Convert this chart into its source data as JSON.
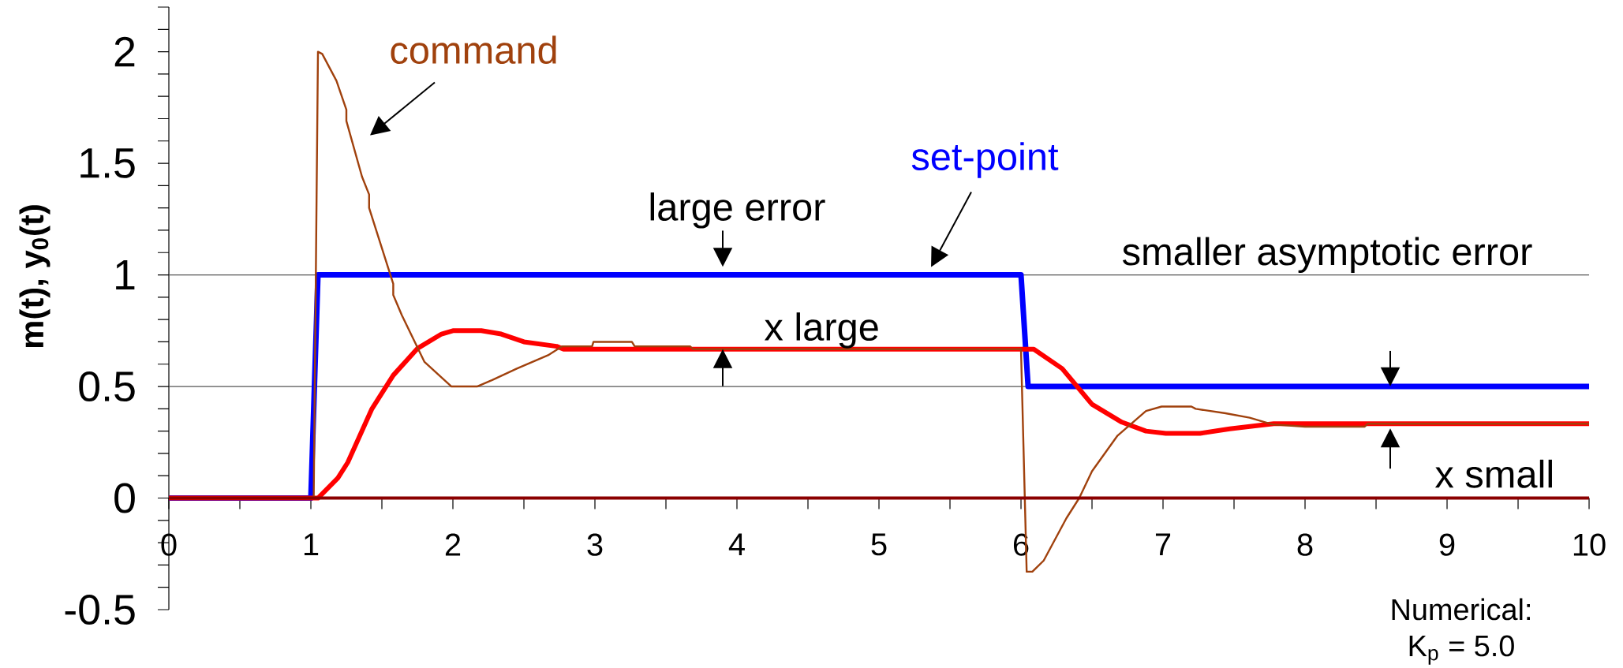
{
  "chart_data": {
    "type": "line",
    "ylabel": "m(t), y$_{0}$(t)",
    "xlim": [
      0,
      10
    ],
    "ylim": [
      -0.5,
      2.2
    ],
    "xticks": [
      0,
      1,
      2,
      3,
      4,
      5,
      6,
      7,
      8,
      9,
      10
    ],
    "yticks": [
      -0.5,
      0,
      0.5,
      1,
      1.5,
      2
    ],
    "series": [
      {
        "name": "set-point",
        "color": "#0000ff",
        "x": [
          0,
          1.0,
          1.05,
          6.0,
          6.05,
          10
        ],
        "values": [
          0,
          0,
          1,
          1,
          0.5,
          0.5
        ]
      },
      {
        "color": "#ff0000",
        "x": [
          0,
          1.05,
          1.19,
          1.26,
          1.43,
          1.58,
          1.75,
          1.92,
          2.0,
          2.2,
          2.34,
          2.5,
          2.73,
          2.78,
          3.0,
          6.0,
          6.09,
          6.29,
          6.5,
          6.71,
          6.88,
          7.02,
          7.26,
          7.47,
          7.67,
          7.78,
          10
        ],
        "values": [
          0,
          0,
          0.09,
          0.16,
          0.4,
          0.55,
          0.67,
          0.735,
          0.75,
          0.75,
          0.735,
          0.7,
          0.68,
          0.667,
          0.667,
          0.667,
          0.667,
          0.58,
          0.42,
          0.34,
          0.3,
          0.29,
          0.29,
          0.31,
          0.325,
          0.333,
          0.333
        ]
      },
      {
        "name": "command",
        "color": "#a0410d",
        "x": [
          0,
          1.02,
          1.05,
          1.08,
          1.18,
          1.25,
          1.25,
          1.36,
          1.41,
          1.41,
          1.58,
          1.58,
          1.64,
          1.8,
          1.92,
          1.99,
          2.17,
          2.28,
          2.45,
          2.67,
          2.77,
          2.98,
          2.99,
          3.26,
          3.28,
          3.67,
          3.69,
          6.0,
          6.04,
          6.08,
          6.16,
          6.32,
          6.41,
          6.5,
          6.68,
          6.88,
          6.99,
          7.06,
          7.2,
          7.23,
          7.44,
          7.61,
          7.77,
          8.0,
          8.42,
          8.44,
          10
        ],
        "values": [
          0,
          0,
          2.0,
          1.99,
          1.87,
          1.74,
          1.69,
          1.44,
          1.36,
          1.3,
          0.96,
          0.91,
          0.82,
          0.61,
          0.54,
          0.5,
          0.5,
          0.53,
          0.58,
          0.64,
          0.68,
          0.68,
          0.7,
          0.7,
          0.68,
          0.68,
          0.667,
          0.667,
          -0.33,
          -0.33,
          -0.28,
          -0.09,
          0.0,
          0.12,
          0.28,
          0.39,
          0.41,
          0.41,
          0.41,
          0.4,
          0.38,
          0.36,
          0.33,
          0.32,
          0.32,
          0.333,
          0.333
        ]
      },
      {
        "color": "#8b0000",
        "x": [
          0,
          10
        ],
        "values": [
          0,
          0
        ]
      }
    ],
    "ref_lines": [
      {
        "axis": "y",
        "value": 1,
        "color": "#555555"
      },
      {
        "axis": "y",
        "value": 0.5,
        "color": "#555555"
      }
    ],
    "annotations": [
      "large error",
      "smaller asymptotic error",
      "x large",
      "x small",
      "Numerical:",
      "K$_{p}$ = 5.0"
    ]
  }
}
